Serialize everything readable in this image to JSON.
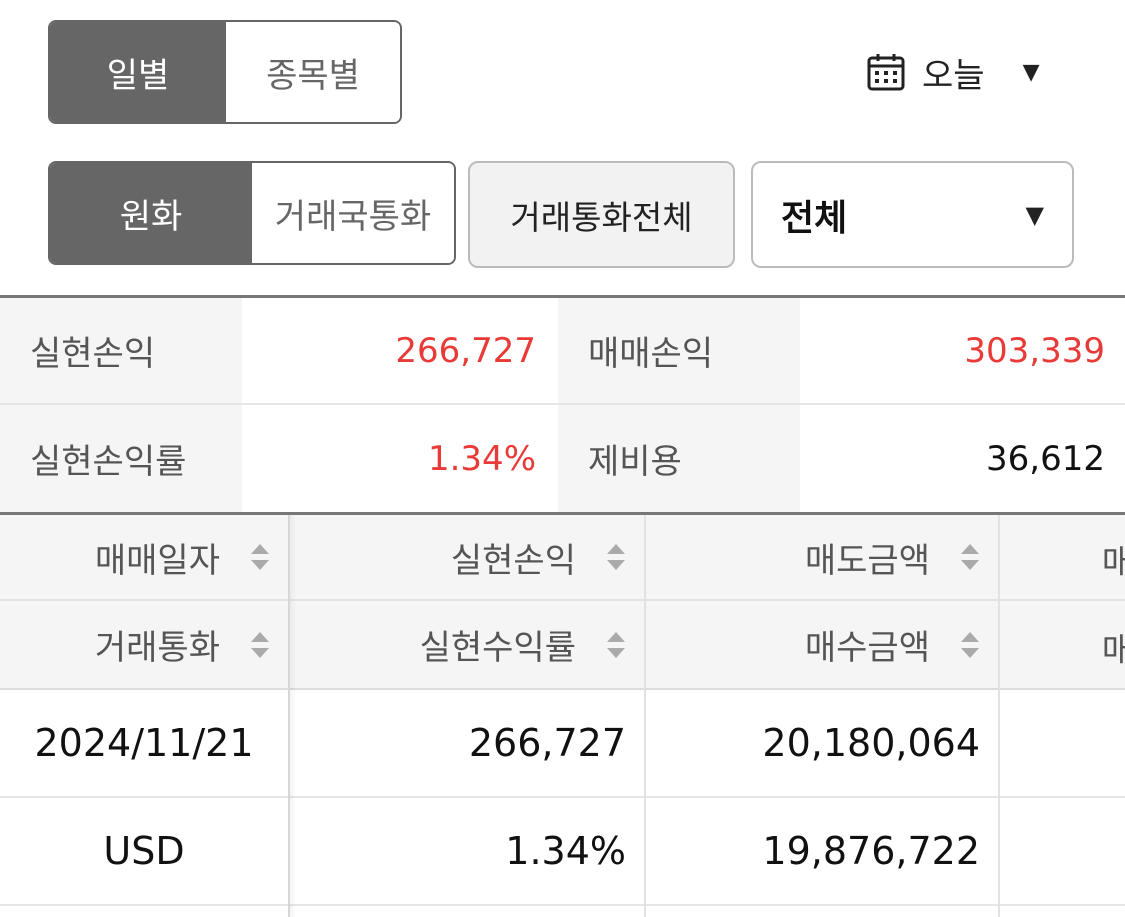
{
  "period_toggle": {
    "daily": "일별",
    "by_stock": "종목별"
  },
  "date_filter": {
    "label": "오늘",
    "icon": "calendar-icon"
  },
  "currency_toggle": {
    "krw": "원화",
    "trade_currency": "거래국통화"
  },
  "currency_all_button": "거래통화전체",
  "market_dropdown": {
    "value": "전체"
  },
  "summary": {
    "realized_pl_label": "실현손익",
    "realized_pl_value": "266,727",
    "trade_pl_label": "매매손익",
    "trade_pl_value": "303,339",
    "realized_rate_label": "실현손익률",
    "realized_rate_value": "1.34%",
    "fees_label": "제비용",
    "fees_value": "36,612"
  },
  "table": {
    "headers_row1": [
      "매매일자",
      "실현손익",
      "매도금액",
      "매"
    ],
    "headers_row2": [
      "거래통화",
      "실현수익률",
      "매수금액",
      "매"
    ],
    "rows": [
      {
        "c1": "2024/11/21",
        "c2": "266,727",
        "c3": "20,180,064"
      },
      {
        "c1": "USD",
        "c2": "1.34%",
        "c3": "19,876,722"
      }
    ]
  },
  "colors": {
    "positive": "#e83a36",
    "active_toggle": "#666666"
  }
}
